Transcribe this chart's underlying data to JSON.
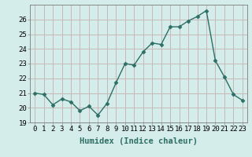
{
  "x": [
    0,
    1,
    2,
    3,
    4,
    5,
    6,
    7,
    8,
    9,
    10,
    11,
    12,
    13,
    14,
    15,
    16,
    17,
    18,
    19,
    20,
    21,
    22,
    23
  ],
  "y": [
    21.0,
    20.9,
    20.2,
    20.6,
    20.4,
    19.8,
    20.1,
    19.5,
    20.3,
    21.7,
    23.0,
    22.9,
    23.8,
    24.4,
    24.3,
    25.5,
    25.5,
    25.9,
    26.2,
    26.6,
    23.2,
    22.1,
    20.9,
    20.5
  ],
  "line_color": "#2d6e65",
  "marker": "D",
  "marker_size": 2.5,
  "linewidth": 1.0,
  "xlabel": "Humidex (Indice chaleur)",
  "ylim": [
    19,
    27
  ],
  "xlim": [
    -0.5,
    23.5
  ],
  "yticks": [
    19,
    20,
    21,
    22,
    23,
    24,
    25,
    26
  ],
  "xticks": [
    0,
    1,
    2,
    3,
    4,
    5,
    6,
    7,
    8,
    9,
    10,
    11,
    12,
    13,
    14,
    15,
    16,
    17,
    18,
    19,
    20,
    21,
    22,
    23
  ],
  "bg_color": "#d4ecea",
  "grid_color": "#c8b8b8",
  "tick_labelsize": 6.5,
  "xlabel_fontsize": 7.5,
  "spine_color": "#888888"
}
